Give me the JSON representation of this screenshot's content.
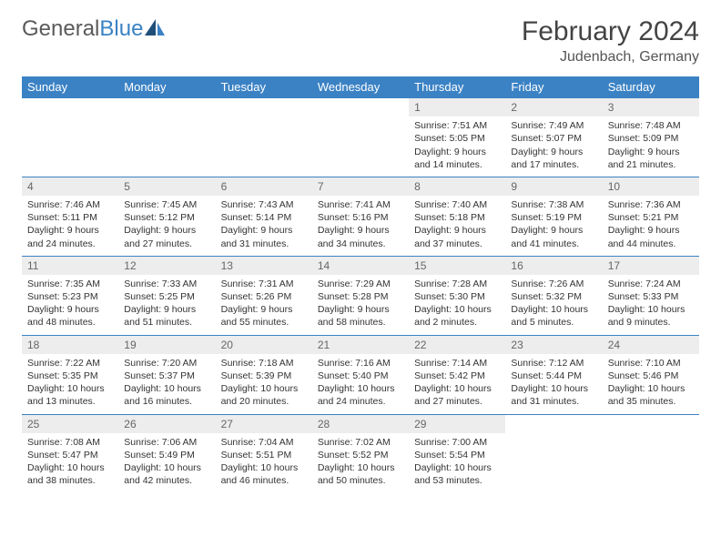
{
  "logo": {
    "text_gray": "General",
    "text_blue": "Blue"
  },
  "title": "February 2024",
  "location": "Judenbach, Germany",
  "colors": {
    "header_bg": "#3b82c4",
    "header_text": "#ffffff",
    "daynum_bg": "#ededed",
    "border": "#3b82c4",
    "logo_gray": "#5a5a5a",
    "logo_blue": "#3b82c4"
  },
  "day_headers": [
    "Sunday",
    "Monday",
    "Tuesday",
    "Wednesday",
    "Thursday",
    "Friday",
    "Saturday"
  ],
  "weeks": [
    [
      null,
      null,
      null,
      null,
      {
        "n": "1",
        "sr": "Sunrise: 7:51 AM",
        "ss": "Sunset: 5:05 PM",
        "d1": "Daylight: 9 hours",
        "d2": "and 14 minutes."
      },
      {
        "n": "2",
        "sr": "Sunrise: 7:49 AM",
        "ss": "Sunset: 5:07 PM",
        "d1": "Daylight: 9 hours",
        "d2": "and 17 minutes."
      },
      {
        "n": "3",
        "sr": "Sunrise: 7:48 AM",
        "ss": "Sunset: 5:09 PM",
        "d1": "Daylight: 9 hours",
        "d2": "and 21 minutes."
      }
    ],
    [
      {
        "n": "4",
        "sr": "Sunrise: 7:46 AM",
        "ss": "Sunset: 5:11 PM",
        "d1": "Daylight: 9 hours",
        "d2": "and 24 minutes."
      },
      {
        "n": "5",
        "sr": "Sunrise: 7:45 AM",
        "ss": "Sunset: 5:12 PM",
        "d1": "Daylight: 9 hours",
        "d2": "and 27 minutes."
      },
      {
        "n": "6",
        "sr": "Sunrise: 7:43 AM",
        "ss": "Sunset: 5:14 PM",
        "d1": "Daylight: 9 hours",
        "d2": "and 31 minutes."
      },
      {
        "n": "7",
        "sr": "Sunrise: 7:41 AM",
        "ss": "Sunset: 5:16 PM",
        "d1": "Daylight: 9 hours",
        "d2": "and 34 minutes."
      },
      {
        "n": "8",
        "sr": "Sunrise: 7:40 AM",
        "ss": "Sunset: 5:18 PM",
        "d1": "Daylight: 9 hours",
        "d2": "and 37 minutes."
      },
      {
        "n": "9",
        "sr": "Sunrise: 7:38 AM",
        "ss": "Sunset: 5:19 PM",
        "d1": "Daylight: 9 hours",
        "d2": "and 41 minutes."
      },
      {
        "n": "10",
        "sr": "Sunrise: 7:36 AM",
        "ss": "Sunset: 5:21 PM",
        "d1": "Daylight: 9 hours",
        "d2": "and 44 minutes."
      }
    ],
    [
      {
        "n": "11",
        "sr": "Sunrise: 7:35 AM",
        "ss": "Sunset: 5:23 PM",
        "d1": "Daylight: 9 hours",
        "d2": "and 48 minutes."
      },
      {
        "n": "12",
        "sr": "Sunrise: 7:33 AM",
        "ss": "Sunset: 5:25 PM",
        "d1": "Daylight: 9 hours",
        "d2": "and 51 minutes."
      },
      {
        "n": "13",
        "sr": "Sunrise: 7:31 AM",
        "ss": "Sunset: 5:26 PM",
        "d1": "Daylight: 9 hours",
        "d2": "and 55 minutes."
      },
      {
        "n": "14",
        "sr": "Sunrise: 7:29 AM",
        "ss": "Sunset: 5:28 PM",
        "d1": "Daylight: 9 hours",
        "d2": "and 58 minutes."
      },
      {
        "n": "15",
        "sr": "Sunrise: 7:28 AM",
        "ss": "Sunset: 5:30 PM",
        "d1": "Daylight: 10 hours",
        "d2": "and 2 minutes."
      },
      {
        "n": "16",
        "sr": "Sunrise: 7:26 AM",
        "ss": "Sunset: 5:32 PM",
        "d1": "Daylight: 10 hours",
        "d2": "and 5 minutes."
      },
      {
        "n": "17",
        "sr": "Sunrise: 7:24 AM",
        "ss": "Sunset: 5:33 PM",
        "d1": "Daylight: 10 hours",
        "d2": "and 9 minutes."
      }
    ],
    [
      {
        "n": "18",
        "sr": "Sunrise: 7:22 AM",
        "ss": "Sunset: 5:35 PM",
        "d1": "Daylight: 10 hours",
        "d2": "and 13 minutes."
      },
      {
        "n": "19",
        "sr": "Sunrise: 7:20 AM",
        "ss": "Sunset: 5:37 PM",
        "d1": "Daylight: 10 hours",
        "d2": "and 16 minutes."
      },
      {
        "n": "20",
        "sr": "Sunrise: 7:18 AM",
        "ss": "Sunset: 5:39 PM",
        "d1": "Daylight: 10 hours",
        "d2": "and 20 minutes."
      },
      {
        "n": "21",
        "sr": "Sunrise: 7:16 AM",
        "ss": "Sunset: 5:40 PM",
        "d1": "Daylight: 10 hours",
        "d2": "and 24 minutes."
      },
      {
        "n": "22",
        "sr": "Sunrise: 7:14 AM",
        "ss": "Sunset: 5:42 PM",
        "d1": "Daylight: 10 hours",
        "d2": "and 27 minutes."
      },
      {
        "n": "23",
        "sr": "Sunrise: 7:12 AM",
        "ss": "Sunset: 5:44 PM",
        "d1": "Daylight: 10 hours",
        "d2": "and 31 minutes."
      },
      {
        "n": "24",
        "sr": "Sunrise: 7:10 AM",
        "ss": "Sunset: 5:46 PM",
        "d1": "Daylight: 10 hours",
        "d2": "and 35 minutes."
      }
    ],
    [
      {
        "n": "25",
        "sr": "Sunrise: 7:08 AM",
        "ss": "Sunset: 5:47 PM",
        "d1": "Daylight: 10 hours",
        "d2": "and 38 minutes."
      },
      {
        "n": "26",
        "sr": "Sunrise: 7:06 AM",
        "ss": "Sunset: 5:49 PM",
        "d1": "Daylight: 10 hours",
        "d2": "and 42 minutes."
      },
      {
        "n": "27",
        "sr": "Sunrise: 7:04 AM",
        "ss": "Sunset: 5:51 PM",
        "d1": "Daylight: 10 hours",
        "d2": "and 46 minutes."
      },
      {
        "n": "28",
        "sr": "Sunrise: 7:02 AM",
        "ss": "Sunset: 5:52 PM",
        "d1": "Daylight: 10 hours",
        "d2": "and 50 minutes."
      },
      {
        "n": "29",
        "sr": "Sunrise: 7:00 AM",
        "ss": "Sunset: 5:54 PM",
        "d1": "Daylight: 10 hours",
        "d2": "and 53 minutes."
      },
      null,
      null
    ]
  ]
}
